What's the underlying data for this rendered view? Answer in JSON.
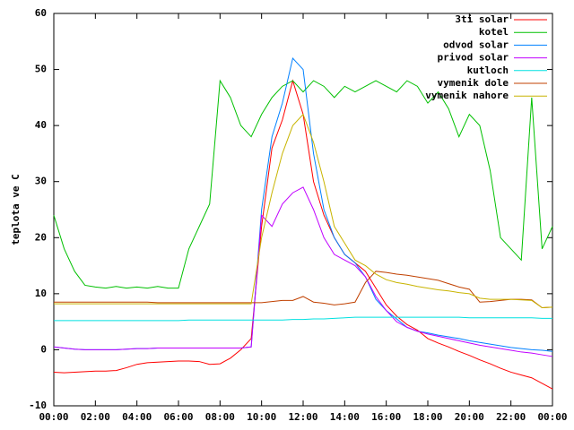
{
  "chart_data": {
    "type": "line",
    "ylabel": "teplota ve C",
    "x": [
      0,
      0.5,
      1,
      1.5,
      2,
      2.5,
      3,
      3.5,
      4,
      4.5,
      5,
      5.5,
      6,
      6.5,
      7,
      7.5,
      8,
      8.5,
      9,
      9.5,
      10,
      10.5,
      11,
      11.5,
      12,
      12.5,
      13,
      13.5,
      14,
      14.5,
      15,
      15.5,
      16,
      16.5,
      17,
      17.5,
      18,
      18.5,
      19,
      19.5,
      20,
      20.5,
      21,
      21.5,
      22,
      22.5,
      23,
      23.5,
      24
    ],
    "series": [
      {
        "name": "3ti solar",
        "color": "#ff0000",
        "values": [
          -4,
          -4.1,
          -4,
          -3.9,
          -3.8,
          -3.8,
          -3.7,
          -3.2,
          -2.6,
          -2.3,
          -2.2,
          -2.1,
          -2,
          -2,
          -2.1,
          -2.6,
          -2.5,
          -1.5,
          0,
          2,
          22,
          36,
          41,
          48,
          42,
          30,
          24,
          20,
          17,
          15.5,
          14,
          11,
          8,
          6,
          4.5,
          3.5,
          2,
          1.2,
          0.5,
          -0.3,
          -1,
          -1.8,
          -2.5,
          -3.3,
          -4,
          -4.5,
          -5,
          -6,
          -7
        ]
      },
      {
        "name": "kotel",
        "color": "#00c000",
        "values": [
          24,
          18,
          14,
          11.5,
          11.2,
          11,
          11.3,
          11,
          11.2,
          11,
          11.3,
          11,
          11,
          18,
          22,
          26,
          48,
          45,
          40,
          38,
          42,
          45,
          47,
          48,
          46,
          48,
          47,
          45,
          47,
          46,
          47,
          48,
          47,
          46,
          48,
          47,
          44,
          46,
          43,
          38,
          42,
          40,
          32,
          20,
          18,
          16,
          45,
          18,
          22
        ]
      },
      {
        "name": "odvod solar",
        "color": "#0080ff",
        "values": [
          0.5,
          0.3,
          0.1,
          0,
          0,
          0,
          0,
          0.1,
          0.2,
          0.2,
          0.3,
          0.3,
          0.3,
          0.3,
          0.3,
          0.3,
          0.3,
          0.3,
          0.3,
          0.5,
          25,
          38,
          44,
          52,
          50,
          35,
          25,
          20,
          17,
          15.5,
          13,
          9,
          7,
          5.5,
          4,
          3.3,
          3,
          2.6,
          2.3,
          2,
          1.6,
          1.3,
          1,
          0.7,
          0.4,
          0.2,
          0,
          -0.1,
          -0.3
        ]
      },
      {
        "name": "privod solar",
        "color": "#c000ff",
        "values": [
          0.5,
          0.3,
          0.1,
          0,
          0,
          0,
          0,
          0.1,
          0.2,
          0.2,
          0.3,
          0.3,
          0.3,
          0.3,
          0.3,
          0.3,
          0.3,
          0.3,
          0.3,
          0.5,
          24,
          22,
          26,
          28,
          29,
          25,
          20,
          17,
          16,
          15,
          13,
          9.5,
          7,
          5,
          4,
          3.3,
          2.8,
          2.4,
          2,
          1.6,
          1.2,
          0.8,
          0.5,
          0.2,
          -0.1,
          -0.4,
          -0.6,
          -0.9,
          -1.2
        ]
      },
      {
        "name": "kutloch",
        "color": "#00e0e0",
        "values": [
          5.2,
          5.2,
          5.2,
          5.2,
          5.2,
          5.2,
          5.2,
          5.2,
          5.2,
          5.2,
          5.2,
          5.2,
          5.2,
          5.3,
          5.3,
          5.3,
          5.3,
          5.3,
          5.3,
          5.3,
          5.3,
          5.3,
          5.3,
          5.4,
          5.4,
          5.5,
          5.5,
          5.6,
          5.7,
          5.8,
          5.8,
          5.8,
          5.8,
          5.8,
          5.8,
          5.8,
          5.8,
          5.8,
          5.8,
          5.8,
          5.7,
          5.7,
          5.7,
          5.7,
          5.7,
          5.7,
          5.7,
          5.6,
          5.6
        ]
      },
      {
        "name": "vymenik dole",
        "color": "#c04000",
        "values": [
          8.5,
          8.5,
          8.5,
          8.5,
          8.5,
          8.5,
          8.5,
          8.5,
          8.5,
          8.5,
          8.4,
          8.4,
          8.4,
          8.4,
          8.4,
          8.4,
          8.4,
          8.4,
          8.4,
          8.4,
          8.4,
          8.6,
          8.8,
          8.8,
          9.5,
          8.5,
          8.3,
          8,
          8.2,
          8.5,
          12,
          14,
          13.8,
          13.5,
          13.3,
          13,
          12.7,
          12.4,
          11.8,
          11.2,
          10.8,
          8.5,
          8.6,
          8.8,
          9,
          9,
          8.9,
          7.5,
          7.6
        ]
      },
      {
        "name": "vymenik nahore",
        "color": "#c8b400",
        "values": [
          8.2,
          8.2,
          8.2,
          8.2,
          8.2,
          8.2,
          8.2,
          8.2,
          8.2,
          8.2,
          8.2,
          8.2,
          8.2,
          8.2,
          8.2,
          8.2,
          8.2,
          8.2,
          8.2,
          8.2,
          20,
          28,
          35,
          40,
          42,
          37,
          30,
          22,
          19,
          16,
          15,
          13.5,
          12.5,
          12,
          11.7,
          11.3,
          11,
          10.7,
          10.5,
          10.2,
          10,
          9.2,
          9,
          9,
          9,
          8.9,
          8.8,
          7.5,
          7.6
        ]
      }
    ],
    "xlim": [
      0,
      24
    ],
    "xticks": [
      {
        "value": 0,
        "label": "00:00"
      },
      {
        "value": 2,
        "label": "02:00"
      },
      {
        "value": 4,
        "label": "04:00"
      },
      {
        "value": 6,
        "label": "06:00"
      },
      {
        "value": 8,
        "label": "08:00"
      },
      {
        "value": 10,
        "label": "10:00"
      },
      {
        "value": 12,
        "label": "12:00"
      },
      {
        "value": 14,
        "label": "14:00"
      },
      {
        "value": 16,
        "label": "16:00"
      },
      {
        "value": 18,
        "label": "18:00"
      },
      {
        "value": 20,
        "label": "20:00"
      },
      {
        "value": 22,
        "label": "22:00"
      },
      {
        "value": 24,
        "label": "00:00"
      }
    ],
    "ylim": [
      -10,
      60
    ],
    "yticks": [
      -10,
      0,
      10,
      20,
      30,
      40,
      50,
      60
    ],
    "grid": false,
    "legend": "top-right"
  }
}
